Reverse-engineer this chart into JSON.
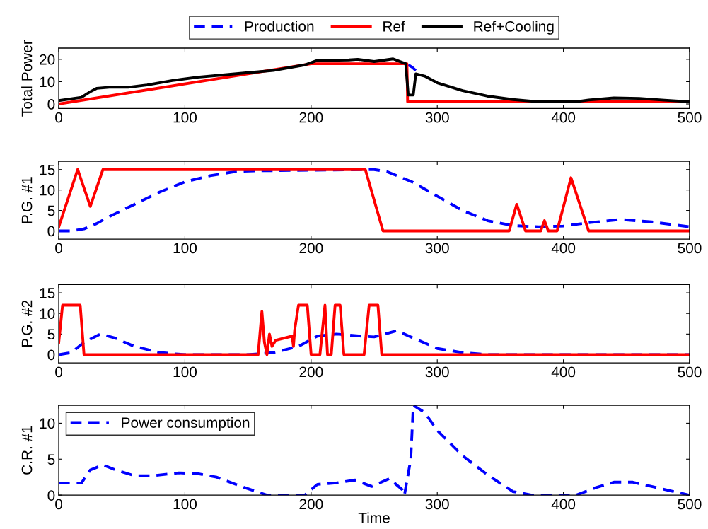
{
  "chart_data": [
    {
      "type": "line",
      "ylabel": "Total Power",
      "xlim": [
        0,
        500
      ],
      "xticks": [
        0,
        100,
        200,
        300,
        400,
        500
      ],
      "ylim": [
        -2,
        25
      ],
      "yticks": [
        0,
        10,
        20
      ],
      "legend": "top",
      "grid": false,
      "series": [
        {
          "name": "Production",
          "color": "#0000ff",
          "line_style": "dashed",
          "x": [
            277,
            280,
            283
          ],
          "values": [
            17.5,
            16.5,
            15
          ]
        },
        {
          "name": "Ref",
          "color": "#ff0000",
          "line_style": "solid",
          "x": [
            0,
            200,
            276,
            276.5,
            500
          ],
          "values": [
            0,
            18,
            18,
            1,
            1
          ]
        },
        {
          "name": "Ref+Cooling",
          "color": "#000000",
          "line_style": "solid",
          "x": [
            0,
            18,
            25,
            30,
            40,
            55,
            70,
            90,
            110,
            130,
            150,
            170,
            195,
            205,
            230,
            237,
            250,
            265,
            275,
            277,
            281,
            283,
            290,
            300,
            320,
            340,
            360,
            380,
            410,
            420,
            440,
            460,
            480,
            500
          ],
          "values": [
            1.5,
            3,
            5.5,
            7,
            7.5,
            7.5,
            8.5,
            10.5,
            12,
            13,
            14,
            15,
            17.5,
            19.5,
            19.7,
            20,
            19,
            20.2,
            18,
            4,
            4,
            13.5,
            12.5,
            9.5,
            6,
            3.5,
            2,
            1,
            1,
            1.8,
            2.7,
            2.5,
            1.7,
            1
          ]
        }
      ]
    },
    {
      "type": "line",
      "ylabel": "P.G. #1",
      "xlim": [
        0,
        500
      ],
      "xticks": [
        0,
        100,
        200,
        300,
        400,
        500
      ],
      "ylim": [
        -2,
        17
      ],
      "yticks": [
        0,
        5,
        10,
        15
      ],
      "grid": false,
      "series": [
        {
          "color": "#0000ff",
          "line_style": "dashed",
          "x": [
            0,
            10,
            20,
            30,
            40,
            60,
            80,
            100,
            120,
            140,
            155,
            250,
            260,
            280,
            300,
            320,
            340,
            360,
            380,
            400,
            420,
            445,
            470,
            500
          ],
          "values": [
            0,
            0,
            0.5,
            1.8,
            3.5,
            6.5,
            9.5,
            12,
            13.5,
            14.5,
            14.7,
            15,
            14.5,
            12,
            8.5,
            5,
            2.5,
            1.3,
            1,
            1.2,
            2,
            2.8,
            2.2,
            1
          ]
        },
        {
          "color": "#ff0000",
          "line_style": "solid",
          "x": [
            0,
            15,
            25,
            35,
            243,
            257,
            357,
            363,
            370,
            382,
            385,
            388,
            395,
            406,
            420,
            500
          ],
          "values": [
            1,
            15,
            6,
            15,
            15,
            0,
            0,
            6.5,
            0,
            0,
            2.5,
            0,
            0,
            13,
            0,
            0
          ]
        }
      ]
    },
    {
      "type": "line",
      "ylabel": "P.G. #2",
      "xlim": [
        0,
        500
      ],
      "xticks": [
        0,
        100,
        200,
        300,
        400,
        500
      ],
      "ylim": [
        -2,
        17
      ],
      "yticks": [
        0,
        5,
        10,
        15
      ],
      "grid": false,
      "series": [
        {
          "color": "#0000ff",
          "line_style": "dashed",
          "x": [
            0,
            10,
            20,
            33,
            45,
            60,
            80,
            100,
            150,
            170,
            190,
            205,
            220,
            240,
            250,
            268,
            285,
            300,
            320,
            340,
            500
          ],
          "values": [
            0,
            0.5,
            3,
            5,
            4,
            2,
            0.5,
            0,
            0,
            0.5,
            2,
            4.5,
            5,
            4.5,
            4.3,
            5.8,
            3.5,
            1.5,
            0.5,
            0,
            0
          ]
        },
        {
          "color": "#ff0000",
          "line_style": "solid",
          "x": [
            0,
            3,
            17,
            20,
            158,
            160,
            161,
            163,
            165,
            167,
            169,
            172,
            185,
            186,
            187,
            190,
            197,
            200,
            207,
            211,
            213,
            216,
            219,
            223,
            226,
            242,
            246,
            253,
            256,
            500
          ],
          "values": [
            3,
            12,
            12,
            0,
            0,
            7,
            10.5,
            3,
            0,
            5,
            2,
            3.5,
            4.5,
            2,
            6,
            12,
            12,
            0,
            0,
            12,
            0,
            0,
            12,
            12,
            0,
            0,
            12,
            12,
            0,
            0
          ]
        }
      ]
    },
    {
      "type": "line",
      "ylabel": "C.R. #1",
      "xlabel": "Time",
      "xlim": [
        0,
        500
      ],
      "xticks": [
        0,
        100,
        200,
        300,
        400,
        500
      ],
      "ylim": [
        0,
        12.5
      ],
      "yticks": [
        0,
        5,
        10
      ],
      "legend": "top left",
      "grid": false,
      "series": [
        {
          "name": "Power consumption",
          "color": "#0000ff",
          "line_style": "dashed",
          "x": [
            0,
            18,
            25,
            35,
            45,
            60,
            75,
            95,
            110,
            125,
            145,
            165,
            195,
            205,
            220,
            235,
            248,
            262,
            272,
            274,
            277,
            279,
            281,
            290,
            300,
            320,
            340,
            360,
            375,
            410,
            425,
            440,
            455,
            470,
            500
          ],
          "values": [
            1.7,
            1.7,
            3.5,
            4.2,
            3.5,
            2.7,
            2.7,
            3.1,
            3,
            2.5,
            1.2,
            0,
            0,
            1.5,
            1.7,
            2.1,
            1.2,
            2.3,
            0.8,
            0,
            3,
            5,
            12.5,
            11.5,
            9,
            5.5,
            2.8,
            0.5,
            0,
            0,
            1,
            1.8,
            1.8,
            1.2,
            0
          ]
        }
      ]
    }
  ]
}
